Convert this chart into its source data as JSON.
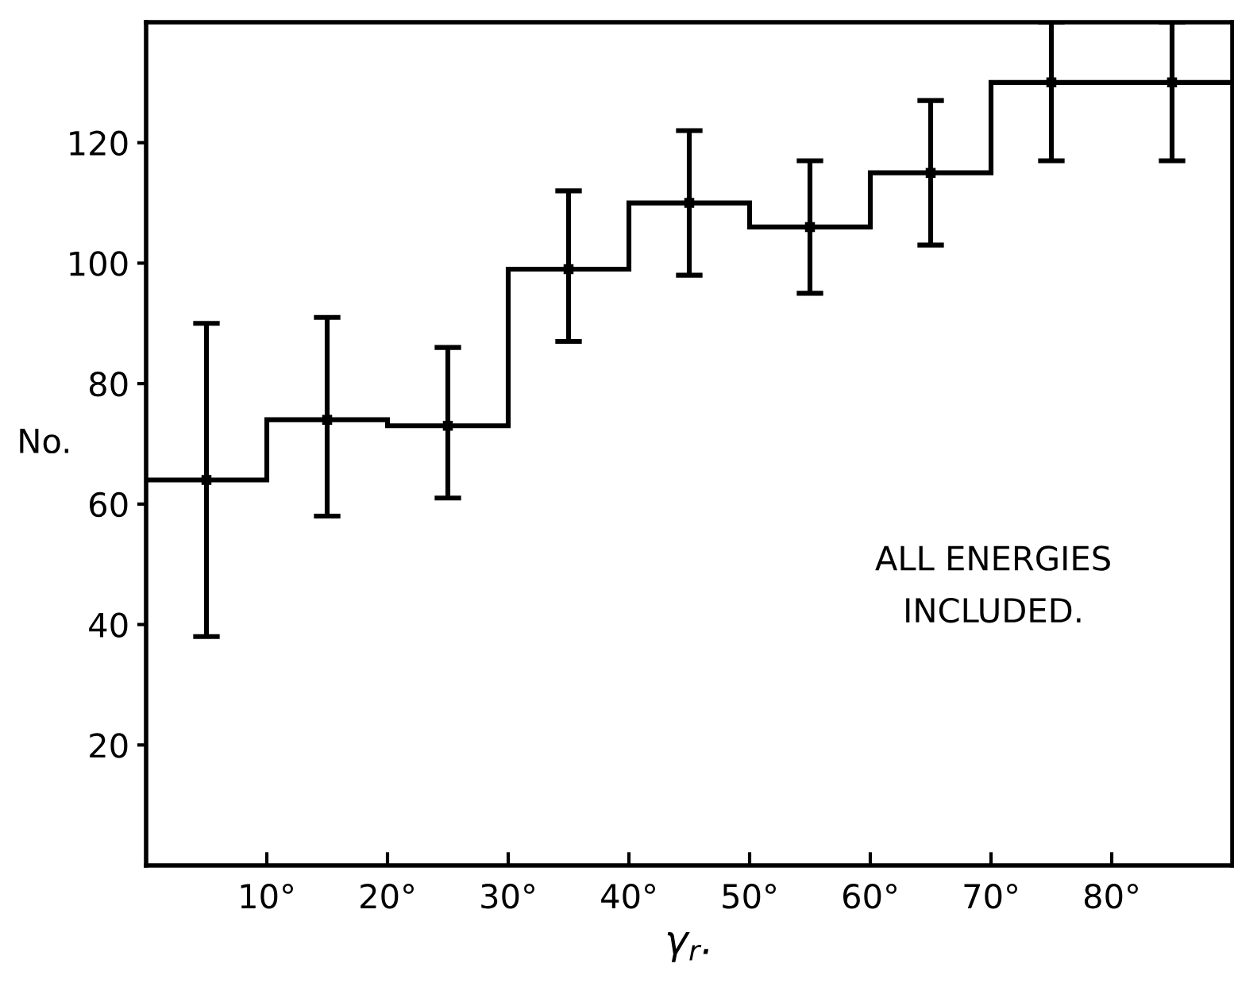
{
  "chart_data": {
    "type": "histogram",
    "bins": [
      0,
      10,
      20,
      30,
      40,
      50,
      60,
      70,
      80,
      90
    ],
    "values": [
      64,
      74,
      73,
      99,
      110,
      106,
      115,
      130,
      130
    ],
    "color": "#000000",
    "series": [
      {
        "type": "scatter",
        "marker": "square",
        "color": "#000000",
        "x": [
          5,
          15,
          25,
          35,
          45,
          55,
          65,
          75,
          85
        ],
        "values": [
          64,
          74,
          73,
          99,
          110,
          106,
          115,
          130,
          130
        ],
        "errors": [
          [
            38,
            90
          ],
          [
            58,
            91
          ],
          [
            61,
            86
          ],
          [
            87,
            112
          ],
          [
            98,
            122
          ],
          [
            95,
            117
          ],
          [
            103,
            127
          ],
          [
            117,
            140
          ],
          [
            117,
            140
          ]
        ]
      }
    ],
    "xlabel": "γ$_{r}$.",
    "ylabel": "No.",
    "xlim": [
      0,
      90
    ],
    "xticks": [
      {
        "value": 10,
        "label": "10°"
      },
      {
        "value": 20,
        "label": "20°"
      },
      {
        "value": 30,
        "label": "30°"
      },
      {
        "value": 40,
        "label": "40°"
      },
      {
        "value": 50,
        "label": "50°"
      },
      {
        "value": 60,
        "label": "60°"
      },
      {
        "value": 70,
        "label": "70°"
      },
      {
        "value": 80,
        "label": "80°"
      }
    ],
    "ylim": [
      0,
      140
    ],
    "yticks": [
      20,
      40,
      60,
      80,
      100,
      120
    ],
    "annotations": [
      "ALL ENERGIES\nINCLUDED."
    ]
  }
}
